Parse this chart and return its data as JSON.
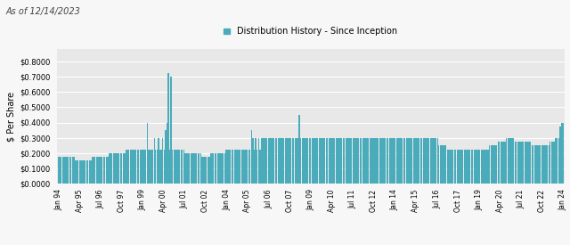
{
  "title": "As of 12/14/2023",
  "legend_label": "Distribution History - Since Inception",
  "ylabel": "$ Per Share",
  "bar_color": "#4aacbb",
  "fig_bg_color": "#f7f7f7",
  "plot_bg_color": "#e8e8e8",
  "ylim": [
    0.0,
    0.88
  ],
  "ytick_vals": [
    0.0,
    0.1,
    0.2,
    0.3,
    0.4,
    0.5,
    0.6,
    0.7,
    0.8
  ],
  "xtick_labels": [
    "Jan 94",
    "Apr 95",
    "Jul 96",
    "Oct 97",
    "Jan 99",
    "Apr 00",
    "Jul 01",
    "Oct 02",
    "Jan 04",
    "Apr 05",
    "Jul 06",
    "Oct 07",
    "Jan 09",
    "Apr 10",
    "Jul 11",
    "Oct 12",
    "Jan 14",
    "Apr 15",
    "Jul 16",
    "Oct 17",
    "Jan 19",
    "Apr 20",
    "Jul 21",
    "Oct 22",
    "Jan 24"
  ],
  "distributions": [
    0.175,
    0.175,
    0.175,
    0.175,
    0.175,
    0.175,
    0.175,
    0.175,
    0.175,
    0.175,
    0.175,
    0.175,
    0.15,
    0.15,
    0.15,
    0.15,
    0.15,
    0.15,
    0.15,
    0.15,
    0.15,
    0.15,
    0.15,
    0.15,
    0.175,
    0.175,
    0.175,
    0.175,
    0.175,
    0.175,
    0.175,
    0.175,
    0.175,
    0.175,
    0.175,
    0.175,
    0.2,
    0.2,
    0.2,
    0.2,
    0.2,
    0.2,
    0.2,
    0.2,
    0.2,
    0.2,
    0.2,
    0.2,
    0.225,
    0.225,
    0.225,
    0.225,
    0.225,
    0.225,
    0.225,
    0.225,
    0.225,
    0.225,
    0.225,
    0.225,
    0.225,
    0.225,
    0.225,
    0.4,
    0.225,
    0.225,
    0.225,
    0.225,
    0.3,
    0.225,
    0.225,
    0.3,
    0.225,
    0.225,
    0.3,
    0.225,
    0.35,
    0.4,
    0.725,
    0.225,
    0.7,
    0.225,
    0.225,
    0.225,
    0.225,
    0.225,
    0.225,
    0.225,
    0.225,
    0.225,
    0.2,
    0.2,
    0.2,
    0.2,
    0.2,
    0.2,
    0.2,
    0.2,
    0.2,
    0.2,
    0.2,
    0.2,
    0.175,
    0.175,
    0.175,
    0.175,
    0.175,
    0.175,
    0.2,
    0.2,
    0.2,
    0.2,
    0.2,
    0.2,
    0.2,
    0.2,
    0.2,
    0.2,
    0.2,
    0.225,
    0.225,
    0.225,
    0.225,
    0.225,
    0.225,
    0.225,
    0.225,
    0.225,
    0.225,
    0.225,
    0.225,
    0.225,
    0.225,
    0.225,
    0.225,
    0.225,
    0.225,
    0.35,
    0.3,
    0.225,
    0.3,
    0.225,
    0.3,
    0.225,
    0.3,
    0.3,
    0.3,
    0.3,
    0.3,
    0.3,
    0.3,
    0.3,
    0.3,
    0.3,
    0.3,
    0.3,
    0.3,
    0.3,
    0.3,
    0.3,
    0.3,
    0.3,
    0.3,
    0.3,
    0.3,
    0.3,
    0.3,
    0.3,
    0.3,
    0.3,
    0.3,
    0.45,
    0.3,
    0.3,
    0.3,
    0.3,
    0.3,
    0.3,
    0.3,
    0.3,
    0.3,
    0.3,
    0.3,
    0.3,
    0.3,
    0.3,
    0.3,
    0.3,
    0.3,
    0.3,
    0.3,
    0.3,
    0.3,
    0.3,
    0.3,
    0.3,
    0.3,
    0.3,
    0.3,
    0.3,
    0.3,
    0.3,
    0.3,
    0.3,
    0.3,
    0.3,
    0.3,
    0.3,
    0.3,
    0.3,
    0.3,
    0.3,
    0.3,
    0.3,
    0.3,
    0.3,
    0.3,
    0.3,
    0.3,
    0.3,
    0.3,
    0.3,
    0.3,
    0.3,
    0.3,
    0.3,
    0.3,
    0.3,
    0.3,
    0.3,
    0.3,
    0.3,
    0.3,
    0.3,
    0.3,
    0.3,
    0.3,
    0.3,
    0.3,
    0.3,
    0.3,
    0.3,
    0.3,
    0.3,
    0.3,
    0.3,
    0.3,
    0.3,
    0.3,
    0.3,
    0.3,
    0.3,
    0.3,
    0.3,
    0.3,
    0.3,
    0.3,
    0.3,
    0.3,
    0.3,
    0.3,
    0.3,
    0.3,
    0.3,
    0.3,
    0.3,
    0.3,
    0.3,
    0.3,
    0.3,
    0.25,
    0.25,
    0.25,
    0.25,
    0.25,
    0.25,
    0.225,
    0.225,
    0.225,
    0.225,
    0.225,
    0.225,
    0.225,
    0.225,
    0.225,
    0.225,
    0.225,
    0.225,
    0.225,
    0.225,
    0.225,
    0.225,
    0.225,
    0.225,
    0.225,
    0.225,
    0.225,
    0.225,
    0.225,
    0.225,
    0.225,
    0.225,
    0.225,
    0.225,
    0.225,
    0.225,
    0.25,
    0.25,
    0.25,
    0.25,
    0.25,
    0.25,
    0.275,
    0.275,
    0.275,
    0.275,
    0.275,
    0.275,
    0.3,
    0.3,
    0.3,
    0.3,
    0.3,
    0.3,
    0.275,
    0.275,
    0.275,
    0.275,
    0.275,
    0.275,
    0.275,
    0.275,
    0.275,
    0.275,
    0.275,
    0.275,
    0.25,
    0.25,
    0.25,
    0.25,
    0.25,
    0.25,
    0.25,
    0.25,
    0.25,
    0.25,
    0.25,
    0.25,
    0.25,
    0.275,
    0.275,
    0.275,
    0.275,
    0.3,
    0.3,
    0.3,
    0.375,
    0.4,
    0.4
  ]
}
